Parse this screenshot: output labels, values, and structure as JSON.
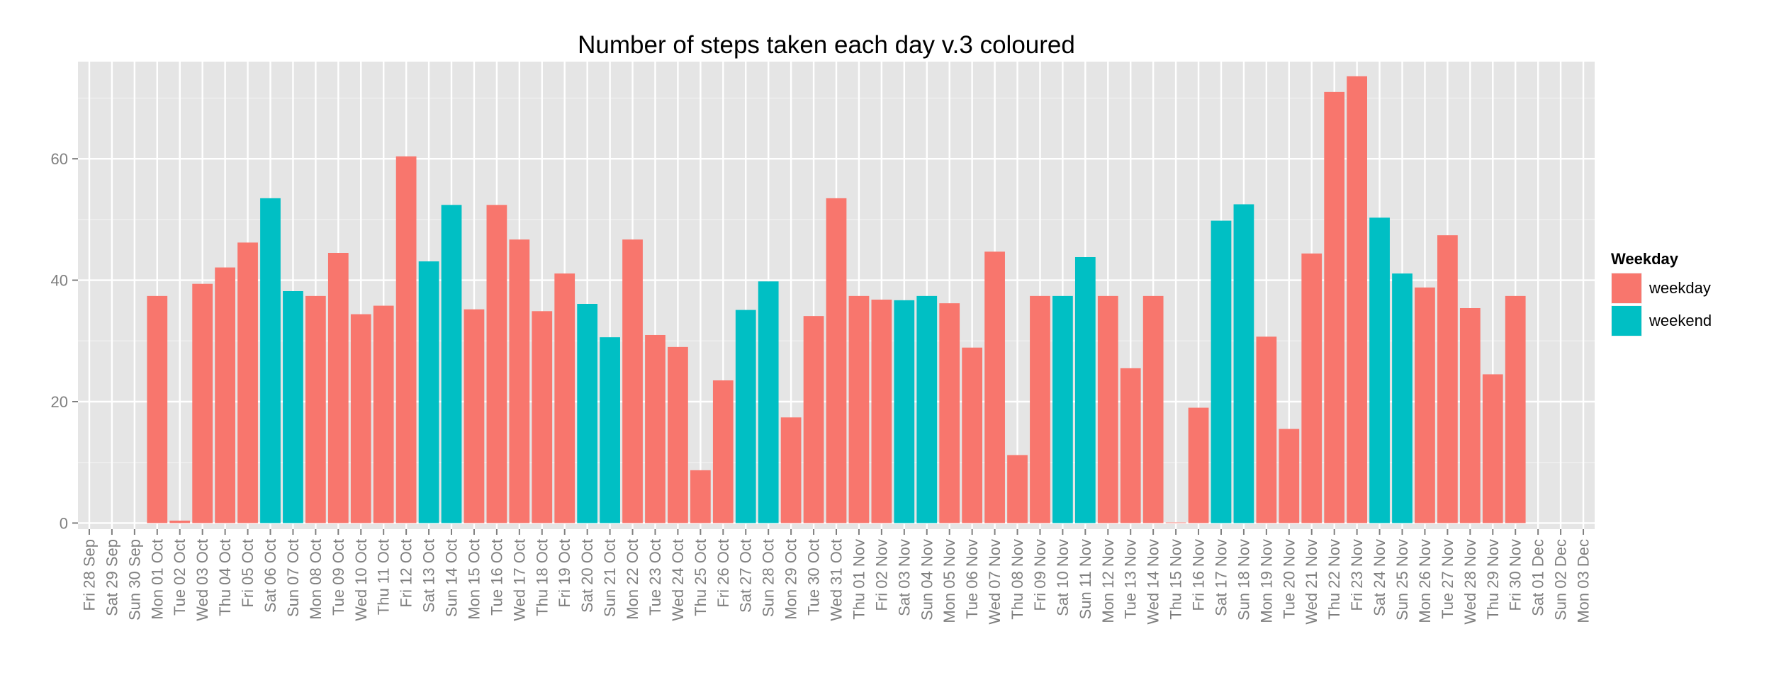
{
  "chart_data": {
    "type": "bar",
    "title": "Number of steps taken each day v.3 coloured",
    "xlabel": "",
    "ylabel": "",
    "ylim": [
      -1,
      76
    ],
    "yticks": [
      0,
      20,
      40,
      60
    ],
    "categories": [
      "Fri 28 Sep",
      "Sat 29 Sep",
      "Sun 30 Sep",
      "Mon 01 Oct",
      "Tue 02 Oct",
      "Wed 03 Oct",
      "Thu 04 Oct",
      "Fri 05 Oct",
      "Sat 06 Oct",
      "Sun 07 Oct",
      "Mon 08 Oct",
      "Tue 09 Oct",
      "Wed 10 Oct",
      "Thu 11 Oct",
      "Fri 12 Oct",
      "Sat 13 Oct",
      "Sun 14 Oct",
      "Mon 15 Oct",
      "Tue 16 Oct",
      "Wed 17 Oct",
      "Thu 18 Oct",
      "Fri 19 Oct",
      "Sat 20 Oct",
      "Sun 21 Oct",
      "Mon 22 Oct",
      "Tue 23 Oct",
      "Wed 24 Oct",
      "Thu 25 Oct",
      "Fri 26 Oct",
      "Sat 27 Oct",
      "Sun 28 Oct",
      "Mon 29 Oct",
      "Tue 30 Oct",
      "Wed 31 Oct",
      "Thu 01 Nov",
      "Fri 02 Nov",
      "Sat 03 Nov",
      "Sun 04 Nov",
      "Mon 05 Nov",
      "Tue 06 Nov",
      "Wed 07 Nov",
      "Thu 08 Nov",
      "Fri 09 Nov",
      "Sat 10 Nov",
      "Sun 11 Nov",
      "Mon 12 Nov",
      "Tue 13 Nov",
      "Wed 14 Nov",
      "Thu 15 Nov",
      "Fri 16 Nov",
      "Sat 17 Nov",
      "Sun 18 Nov",
      "Mon 19 Nov",
      "Tue 20 Nov",
      "Wed 21 Nov",
      "Thu 22 Nov",
      "Fri 23 Nov",
      "Sat 24 Nov",
      "Sun 25 Nov",
      "Mon 26 Nov",
      "Tue 27 Nov",
      "Wed 28 Nov",
      "Thu 29 Nov",
      "Fri 30 Nov",
      "Sat 01 Dec",
      "Sun 02 Dec",
      "Mon 03 Dec"
    ],
    "values": [
      null,
      null,
      null,
      37.4,
      0.4,
      39.4,
      42.1,
      46.2,
      53.5,
      38.2,
      37.4,
      44.5,
      34.4,
      35.8,
      60.4,
      43.1,
      52.4,
      35.2,
      52.4,
      46.7,
      34.9,
      41.1,
      36.1,
      30.6,
      46.7,
      30.97,
      29.0,
      8.7,
      23.5,
      35.1,
      39.8,
      17.4,
      34.1,
      53.5,
      37.4,
      36.8,
      36.7,
      37.4,
      36.2,
      28.9,
      44.7,
      11.2,
      37.4,
      37.4,
      43.8,
      37.4,
      25.5,
      37.4,
      0.1,
      19.0,
      49.8,
      52.5,
      30.7,
      15.5,
      44.4,
      71.0,
      73.6,
      50.3,
      41.1,
      38.8,
      47.4,
      35.4,
      24.5,
      37.4,
      null,
      null,
      null
    ],
    "groups": [
      null,
      null,
      null,
      "weekday",
      "weekday",
      "weekday",
      "weekday",
      "weekday",
      "weekend",
      "weekend",
      "weekday",
      "weekday",
      "weekday",
      "weekday",
      "weekday",
      "weekend",
      "weekend",
      "weekday",
      "weekday",
      "weekday",
      "weekday",
      "weekday",
      "weekend",
      "weekend",
      "weekday",
      "weekday",
      "weekday",
      "weekday",
      "weekday",
      "weekend",
      "weekend",
      "weekday",
      "weekday",
      "weekday",
      "weekday",
      "weekday",
      "weekend",
      "weekend",
      "weekday",
      "weekday",
      "weekday",
      "weekday",
      "weekday",
      "weekend",
      "weekend",
      "weekday",
      "weekday",
      "weekday",
      "weekday",
      "weekday",
      "weekend",
      "weekend",
      "weekday",
      "weekday",
      "weekday",
      "weekday",
      "weekday",
      "weekend",
      "weekend",
      "weekday",
      "weekday",
      "weekday",
      "weekday",
      "weekday",
      null,
      null,
      null
    ],
    "legend": {
      "title": "Weekday",
      "position": "right",
      "entries": [
        {
          "label": "weekday",
          "color": "#F8766D"
        },
        {
          "label": "weekend",
          "color": "#00BFC4"
        }
      ]
    },
    "grid": true,
    "panel_background": "#E5E5E5"
  }
}
